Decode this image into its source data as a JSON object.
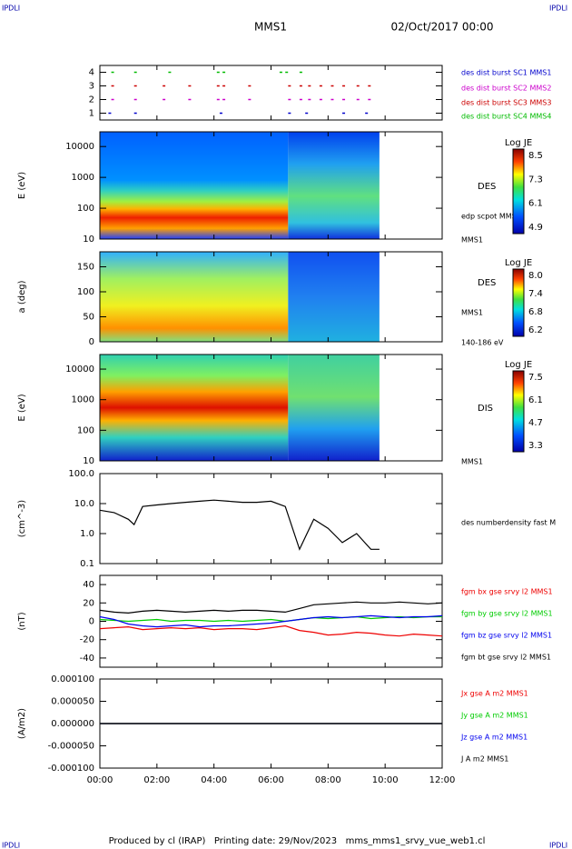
{
  "header": {
    "corner_left": "IPDLI",
    "corner_right": "IPDLI",
    "title": "MMS1",
    "date": "02/Oct/2017 00:00"
  },
  "footer": {
    "text": "Produced by cl (IRAP)   Printing date: 29/Nov/2023   mms_mms1_srvy_vue_web1.cl",
    "corner_left": "IPDLI",
    "corner_right": "IPDLI"
  },
  "xlim": [
    0,
    12
  ],
  "xticks": [
    {
      "value": 0,
      "label": "00:00"
    },
    {
      "value": 2,
      "label": "02:00"
    },
    {
      "value": 4,
      "label": "04:00"
    },
    {
      "value": 6,
      "label": "06:00"
    },
    {
      "value": 8,
      "label": "08:00"
    },
    {
      "value": 10,
      "label": "10:00"
    },
    {
      "value": 12,
      "label": "12:00"
    }
  ],
  "chart_data": [
    {
      "type": "burst",
      "ylim": [
        0.5,
        4.5
      ],
      "yticks": [
        1,
        2,
        3,
        4
      ],
      "series": [
        {
          "name": "des dist burst SC1 MMS1",
          "color": "#0000cc",
          "level": 1,
          "x": [
            0.3,
            1.2,
            4.2,
            6.6,
            7.2,
            8.5,
            9.3
          ]
        },
        {
          "name": "des dist burst SC2 MMS2",
          "color": "#cc00cc",
          "level": 2,
          "x": [
            0.4,
            1.2,
            2.2,
            3.1,
            4.1,
            4.3,
            5.2,
            6.6,
            7.0,
            7.3,
            7.7,
            8.1,
            8.5,
            9.0,
            9.4
          ]
        },
        {
          "name": "des dist burst SC3 MMS3",
          "color": "#cc0000",
          "level": 3,
          "x": [
            0.4,
            1.2,
            2.2,
            3.1,
            4.1,
            4.3,
            5.2,
            6.6,
            7.0,
            7.3,
            7.7,
            8.1,
            8.5,
            9.0,
            9.4
          ]
        },
        {
          "name": "des dist burst SC4 MMS4",
          "color": "#00bb00",
          "level": 4,
          "x": [
            0.4,
            1.2,
            2.4,
            4.1,
            4.3,
            6.3,
            6.5,
            7.0
          ]
        }
      ]
    },
    {
      "type": "spectrogram",
      "ylabel": "E (eV)",
      "log": true,
      "ylim": [
        10,
        30000
      ],
      "yticks": [
        10,
        100,
        1000,
        10000
      ],
      "side_labels": [
        "DES",
        "edp scpot MMS1",
        "MMS1"
      ],
      "colorbar": {
        "title": "Log JE",
        "ticks": [
          8.5,
          7.3,
          6.1,
          4.9
        ]
      }
    },
    {
      "type": "spectrogram",
      "ylabel": "a (deg)",
      "log": false,
      "ylim": [
        0,
        180
      ],
      "yticks": [
        0,
        50,
        100,
        150
      ],
      "side_labels": [
        "DES",
        "MMS1",
        "140-186 eV"
      ],
      "colorbar": {
        "title": "Log JE",
        "ticks": [
          {
            "value": 8,
            "label": "8.0"
          },
          7.4,
          6.8,
          6.2
        ]
      }
    },
    {
      "type": "spectrogram",
      "ylabel": "E (eV)",
      "log": true,
      "ylim": [
        10,
        30000
      ],
      "yticks": [
        10,
        100,
        1000,
        10000
      ],
      "side_labels": [
        "DIS",
        "MMS1"
      ],
      "colorbar": {
        "title": "Log JE",
        "ticks": [
          7.5,
          6.1,
          4.7,
          3.3
        ]
      }
    },
    {
      "type": "line",
      "ylabel": "(cm^-3)",
      "log": true,
      "ylim": [
        0.1,
        100
      ],
      "yticks": [
        {
          "value": 0.1,
          "label": "0.1"
        },
        {
          "value": 1,
          "label": "1.0"
        },
        {
          "value": 10,
          "label": "10.0"
        },
        {
          "value": 100,
          "label": "100.0"
        }
      ],
      "series": [
        {
          "name": "des numberdensity fast M",
          "color": "#000000",
          "x": [
            0,
            0.5,
            1,
            1.2,
            1.5,
            2,
            2.5,
            3,
            3.5,
            4,
            4.5,
            5,
            5.5,
            6,
            6.5,
            7,
            7.5,
            8,
            8.5,
            9,
            9.5,
            9.8
          ],
          "values": [
            6,
            5,
            3,
            2,
            8,
            9,
            10,
            11,
            12,
            13,
            12,
            11,
            11,
            12,
            8,
            0.3,
            3,
            1.5,
            0.5,
            1,
            0.3,
            0.3
          ]
        }
      ]
    },
    {
      "type": "line",
      "ylabel": "(nT)",
      "log": false,
      "ylim": [
        -50,
        50
      ],
      "yticks": [
        -40,
        -20,
        0,
        20,
        40
      ],
      "series": [
        {
          "name": "fgm bx gse srvy l2 MMS1",
          "color": "#ee0000",
          "x": [
            0,
            0.5,
            1,
            1.5,
            2,
            2.5,
            3,
            3.5,
            4,
            4.5,
            5,
            5.5,
            6,
            6.5,
            7,
            7.5,
            8,
            8.5,
            9,
            9.5,
            10,
            10.5,
            11,
            11.5,
            12
          ],
          "values": [
            -8,
            -7,
            -6,
            -9,
            -8,
            -7,
            -8,
            -7,
            -9,
            -8,
            -8,
            -9,
            -7,
            -5,
            -10,
            -12,
            -15,
            -14,
            -12,
            -13,
            -15,
            -16,
            -14,
            -15,
            -16
          ]
        },
        {
          "name": "fgm by gse srvy l2 MMS1",
          "color": "#00cc00",
          "x": [
            0,
            0.5,
            1,
            1.5,
            2,
            2.5,
            3,
            3.5,
            4,
            4.5,
            5,
            5.5,
            6,
            6.5,
            7,
            7.5,
            8,
            8.5,
            9,
            9.5,
            10,
            10.5,
            11,
            11.5,
            12
          ],
          "values": [
            2,
            1,
            0,
            1,
            2,
            0,
            1,
            1,
            0,
            1,
            0,
            1,
            2,
            0,
            2,
            4,
            3,
            4,
            5,
            3,
            4,
            5,
            4,
            5,
            5
          ]
        },
        {
          "name": "fgm bz gse srvy l2 MMS1",
          "color": "#0000ee",
          "x": [
            0,
            0.5,
            1,
            1.5,
            2,
            2.5,
            3,
            3.5,
            4,
            4.5,
            5,
            5.5,
            6,
            6.5,
            7,
            7.5,
            8,
            8.5,
            9,
            9.5,
            10,
            10.5,
            11,
            11.5,
            12
          ],
          "values": [
            5,
            2,
            -3,
            -5,
            -6,
            -5,
            -4,
            -6,
            -5,
            -5,
            -4,
            -3,
            -2,
            0,
            2,
            4,
            5,
            4,
            5,
            6,
            5,
            4,
            5,
            5,
            6
          ]
        },
        {
          "name": "fgm bt gse srvy l2 MMS1",
          "color": "#000000",
          "x": [
            0,
            0.5,
            1,
            1.5,
            2,
            2.5,
            3,
            3.5,
            4,
            4.5,
            5,
            5.5,
            6,
            6.5,
            7,
            7.5,
            8,
            8.5,
            9,
            9.5,
            10,
            10.5,
            11,
            11.5,
            12
          ],
          "values": [
            12,
            10,
            9,
            11,
            12,
            11,
            10,
            11,
            12,
            11,
            12,
            12,
            11,
            10,
            14,
            18,
            19,
            20,
            21,
            20,
            20,
            21,
            20,
            19,
            20
          ]
        }
      ]
    },
    {
      "type": "line",
      "ylabel": "(A/m2)",
      "log": false,
      "ylim": [
        -0.0001,
        0.0001
      ],
      "yticks": [
        {
          "value": -0.0001,
          "label": "-0.000100"
        },
        {
          "value": -5e-05,
          "label": "-0.000050"
        },
        {
          "value": 0,
          "label": "0.000000"
        },
        {
          "value": 5e-05,
          "label": "0.000050"
        },
        {
          "value": 0.0001,
          "label": "0.000100"
        }
      ],
      "series": [
        {
          "name": "Jx gse A m2 MMS1",
          "color": "#ee0000",
          "x": [
            0,
            6,
            12
          ],
          "values": [
            0,
            0,
            0
          ]
        },
        {
          "name": "Jy gse A m2 MMS1",
          "color": "#00cc00",
          "x": [
            0,
            6,
            12
          ],
          "values": [
            0,
            0,
            0
          ]
        },
        {
          "name": "Jz gse A m2 MMS1",
          "color": "#0000ee",
          "x": [
            0,
            6,
            12
          ],
          "values": [
            0,
            0,
            0
          ]
        },
        {
          "name": "J A m2 MMS1",
          "color": "#000000",
          "x": [
            0,
            6,
            12
          ],
          "values": [
            0,
            0,
            0
          ]
        }
      ]
    }
  ]
}
